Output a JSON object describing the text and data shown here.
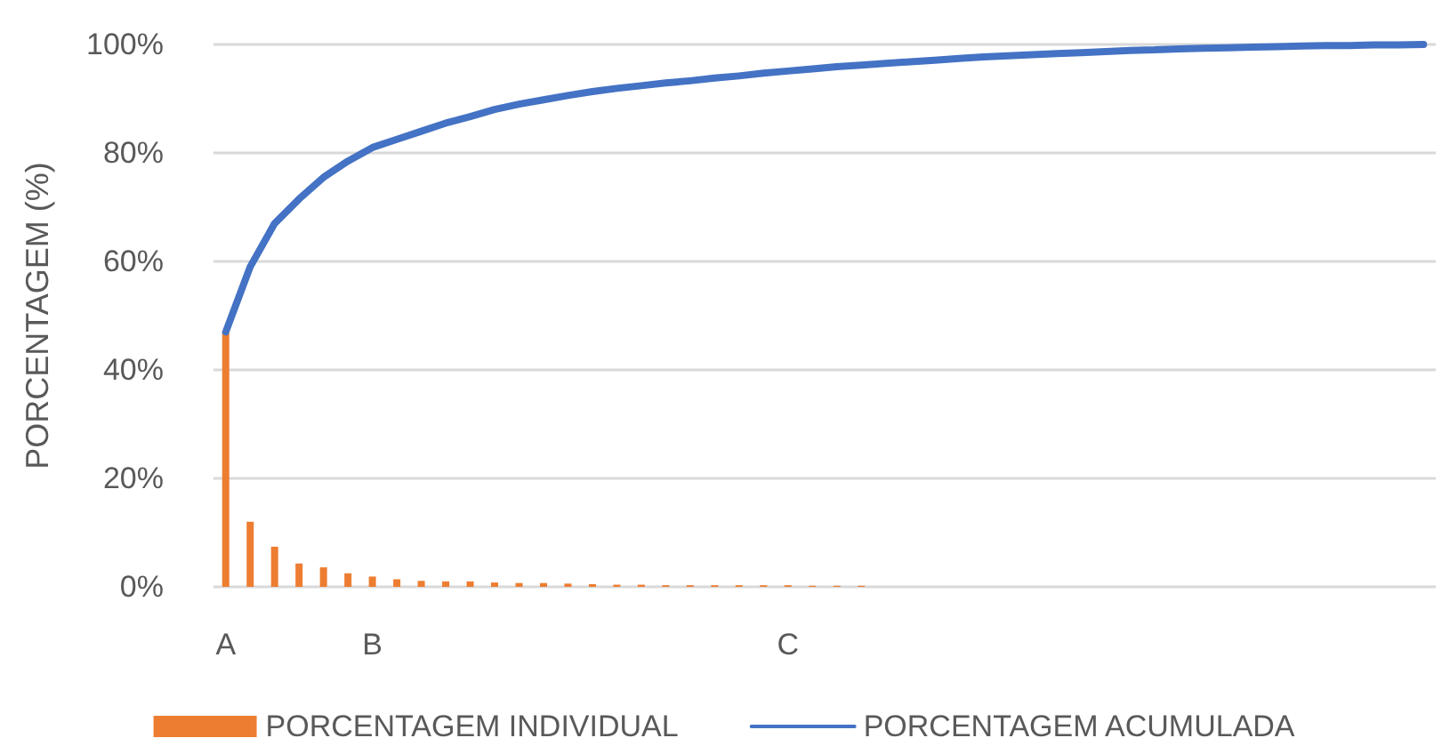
{
  "chart_data": {
    "type": "bar",
    "ylabel": "PORCENTAGEM (%)",
    "categories": [
      "A",
      null,
      null,
      null,
      null,
      null,
      "B",
      null,
      null,
      null,
      null,
      null,
      null,
      null,
      null,
      null,
      null,
      null,
      null,
      null,
      null,
      null,
      null,
      "C",
      null,
      null,
      null,
      null,
      null,
      null,
      null,
      null,
      null,
      null,
      null,
      null,
      null,
      null,
      null,
      null,
      null,
      null,
      null,
      null,
      null,
      null,
      null,
      null,
      null,
      null
    ],
    "series": [
      {
        "name": "PORCENTAGEM INDIVIDUAL",
        "color": "#ed7d31",
        "values": [
          47,
          12,
          7.4,
          4.3,
          3.6,
          2.5,
          1.9,
          1.4,
          1.1,
          1.0,
          1.0,
          0.8,
          0.7,
          0.7,
          0.6,
          0.5,
          0.4,
          0.4,
          0.3,
          0.3,
          0.3,
          0.3,
          0.3,
          0.3,
          0.2,
          0.2,
          0.2,
          0,
          0,
          0,
          0,
          0,
          0,
          0,
          0,
          0,
          0,
          0,
          0,
          0,
          0,
          0,
          0,
          0,
          0,
          0,
          0,
          0,
          0,
          0
        ]
      },
      {
        "name": "PORCENTAGEM ACUMULADA",
        "type": "line",
        "color": "#4472c4",
        "values": [
          47,
          59,
          67,
          71.5,
          75.5,
          78.5,
          81,
          82.5,
          84,
          85.5,
          86.7,
          88,
          89,
          89.8,
          90.6,
          91.3,
          91.9,
          92.4,
          92.9,
          93.3,
          93.8,
          94.2,
          94.7,
          95.1,
          95.5,
          95.9,
          96.2,
          96.5,
          96.8,
          97.1,
          97.4,
          97.7,
          97.9,
          98.1,
          98.3,
          98.5,
          98.7,
          98.9,
          99.0,
          99.2,
          99.3,
          99.4,
          99.5,
          99.6,
          99.7,
          99.8,
          99.8,
          99.9,
          99.9,
          100
        ]
      }
    ],
    "ylim": [
      0,
      100
    ],
    "yticks": [
      {
        "value": 0,
        "label": "0%"
      },
      {
        "value": 20,
        "label": "20%"
      },
      {
        "value": 40,
        "label": "40%"
      },
      {
        "value": 60,
        "label": "60%"
      },
      {
        "value": 80,
        "label": "80%"
      },
      {
        "value": 100,
        "label": "100%"
      }
    ],
    "grid": "y",
    "legend": "bottom",
    "marker": "none",
    "line_style": "solid"
  }
}
